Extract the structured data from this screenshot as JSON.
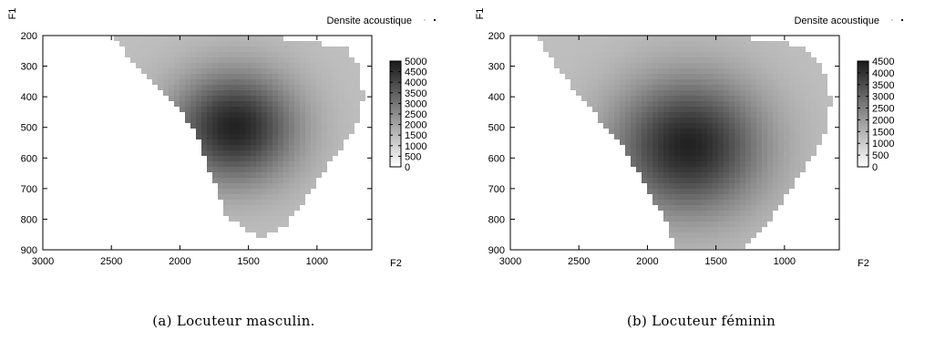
{
  "chart_data": [
    {
      "type": "heatmap",
      "caption": "(a) Locuteur masculin.",
      "xlabel": "F2",
      "ylabel": "F1",
      "xlim": [
        3000,
        600
      ],
      "ylim": [
        900,
        200
      ],
      "xticks": [
        3000,
        2500,
        2000,
        1500,
        1000
      ],
      "yticks": [
        200,
        300,
        400,
        500,
        600,
        700,
        800,
        900
      ],
      "legend": {
        "label": "Densite acoustique",
        "position": "top-right"
      },
      "colorbar": {
        "min": 0,
        "max": 5000,
        "ticks": [
          0,
          500,
          1000,
          1500,
          2000,
          2500,
          3000,
          3500,
          4000,
          4500,
          5000
        ]
      },
      "region": {
        "boundary": [
          [
            2510,
            200
          ],
          [
            2310,
            300
          ],
          [
            2100,
            400
          ],
          [
            1900,
            500
          ],
          [
            1820,
            600
          ],
          [
            1730,
            700
          ],
          [
            1650,
            800
          ],
          [
            1400,
            860
          ],
          [
            1230,
            820
          ],
          [
            1030,
            700
          ],
          [
            880,
            600
          ],
          [
            710,
            500
          ],
          [
            660,
            400
          ],
          [
            700,
            300
          ],
          [
            780,
            240
          ],
          [
            1200,
            210
          ],
          [
            1800,
            200
          ]
        ],
        "peak": {
          "f2": 1600,
          "f1": 500,
          "density": 5000
        },
        "spread": [
          350,
          140
        ]
      },
      "grid": false
    },
    {
      "type": "heatmap",
      "caption": "(b) Locuteur féminin",
      "xlabel": "F2",
      "ylabel": "F1",
      "xlim": [
        3000,
        600
      ],
      "ylim": [
        900,
        200
      ],
      "xticks": [
        3000,
        2500,
        2000,
        1500,
        1000
      ],
      "yticks": [
        200,
        300,
        400,
        500,
        600,
        700,
        800,
        900
      ],
      "legend": {
        "label": "Densite acoustique",
        "position": "top-right"
      },
      "colorbar": {
        "min": 0,
        "max": 4500,
        "ticks": [
          0,
          500,
          1000,
          1500,
          2000,
          2500,
          3000,
          3500,
          4000,
          4500
        ]
      },
      "region": {
        "boundary": [
          [
            2800,
            200
          ],
          [
            2700,
            280
          ],
          [
            2500,
            400
          ],
          [
            2200,
            550
          ],
          [
            2000,
            700
          ],
          [
            1850,
            820
          ],
          [
            1800,
            900
          ],
          [
            1300,
            900
          ],
          [
            1100,
            800
          ],
          [
            800,
            600
          ],
          [
            680,
            500
          ],
          [
            660,
            400
          ],
          [
            720,
            300
          ],
          [
            900,
            230
          ],
          [
            1300,
            205
          ],
          [
            2000,
            200
          ]
        ],
        "peak": {
          "f2": 1700,
          "f1": 560,
          "density": 4500
        },
        "spread": [
          420,
          170
        ]
      },
      "grid": false
    }
  ]
}
